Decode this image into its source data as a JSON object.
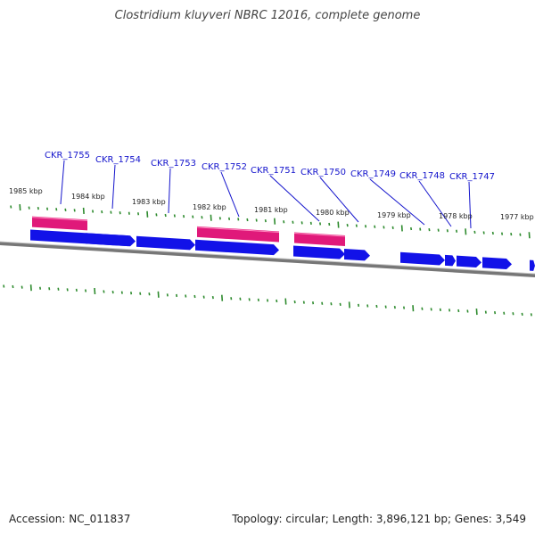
{
  "title": "Clostridium kluyveri NBRC 12016, complete genome",
  "footer": {
    "accession_label": "Accession:",
    "accession": "NC_011837",
    "topology_text": "Topology: circular; Length: 3,896,121 bp; Genes: 3,549"
  },
  "colors": {
    "forward_gene": "#1212e8",
    "reverse_gene": "#e0197a",
    "tick": "#2e8b2e",
    "backbone": "#777777",
    "locus_label": "#1414cc"
  },
  "kbp_labels": [
    "1985 kbp",
    "1984 kbp",
    "1983 kbp",
    "1982 kbp",
    "1981 kbp",
    "1980 kbp",
    "1979 kbp",
    "1978 kbp",
    "1977 kbp"
  ],
  "locus_tags": [
    "CKR_1755",
    "CKR_1754",
    "CKR_1753",
    "CKR_1752",
    "CKR_1751",
    "CKR_1750",
    "CKR_1749",
    "CKR_1748",
    "CKR_1747"
  ]
}
